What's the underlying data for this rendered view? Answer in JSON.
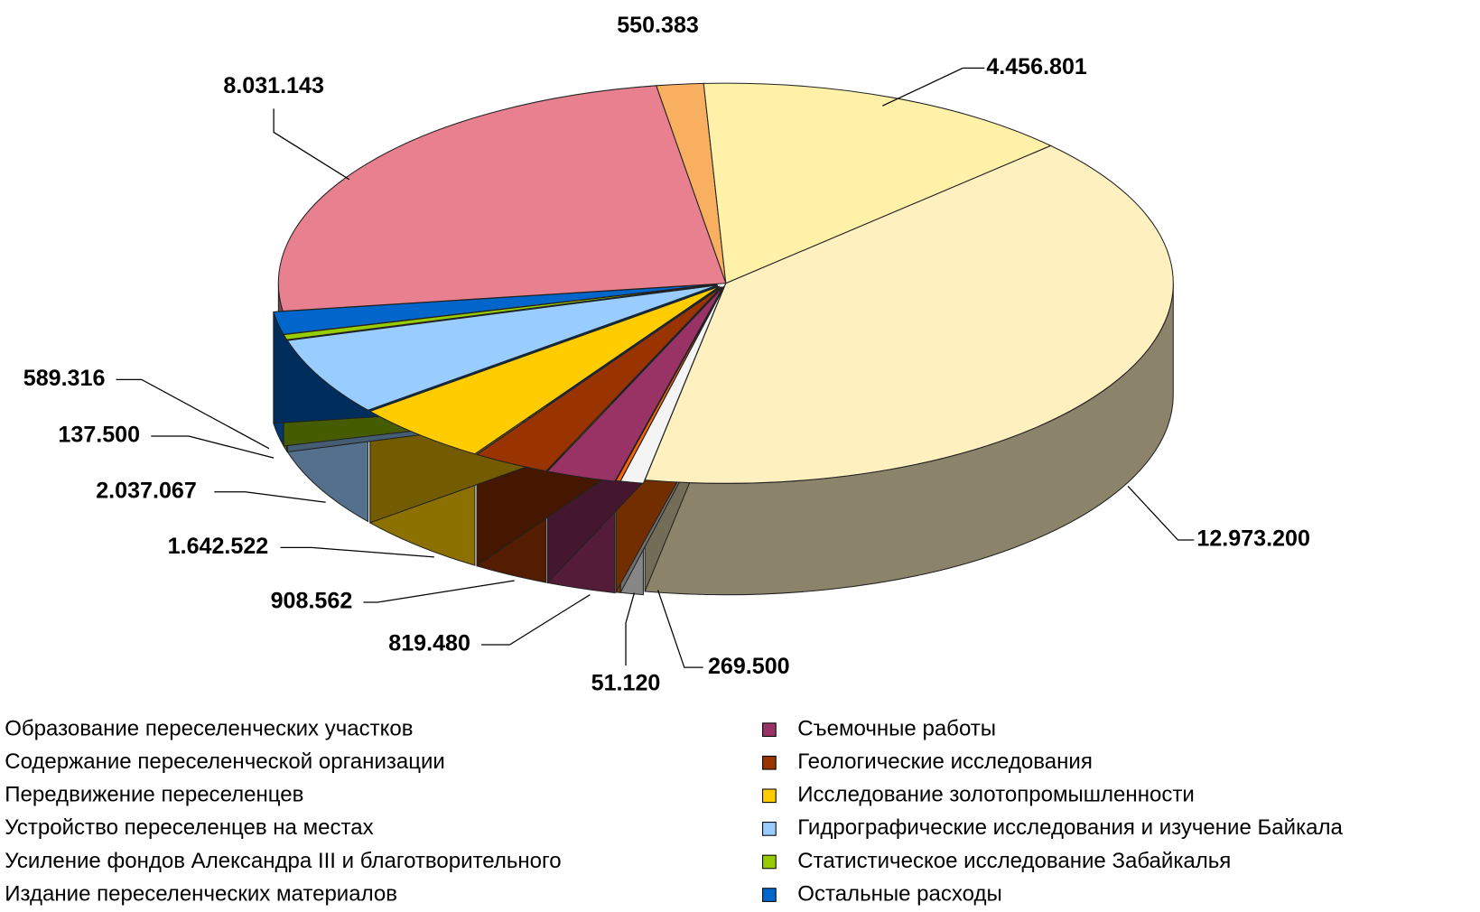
{
  "chart_data": {
    "type": "pie",
    "categories": [
      "Образование переселенческих участков",
      "Содержание переселенческой организации",
      "Передвижение переселенцев",
      "Устройство переселенцев на местах",
      "Усиление фондов Александра III и благотворительного",
      "Издание переселенческих материалов",
      "Съемочные работы",
      "Геологические исследования",
      "Исследование золотопромышленности",
      "Гидрографические исследования и изучение Байкала",
      "Статистическое исследование Забайкалья",
      "Остальные расходы"
    ],
    "values": [
      8031143,
      550383,
      4456801,
      12973200,
      269500,
      51120,
      819480,
      908562,
      1642522,
      2037067,
      137500,
      589316
    ],
    "value_labels": [
      "8.031.143",
      "550.383",
      "4.456.801",
      "12.973.200",
      "269.500",
      "51.120",
      "819.480",
      "908.562",
      "1.642.522",
      "2.037.067",
      "137.500",
      "589.316"
    ],
    "colors": [
      "#e8808f",
      "#f8b060",
      "#fff2a8",
      "#fff0c0",
      "#f4f4f4",
      "#ff6600",
      "#993366",
      "#993300",
      "#ffcc00",
      "#99ccff",
      "#99cc00",
      "#0066cc"
    ],
    "legend": "bottom"
  }
}
